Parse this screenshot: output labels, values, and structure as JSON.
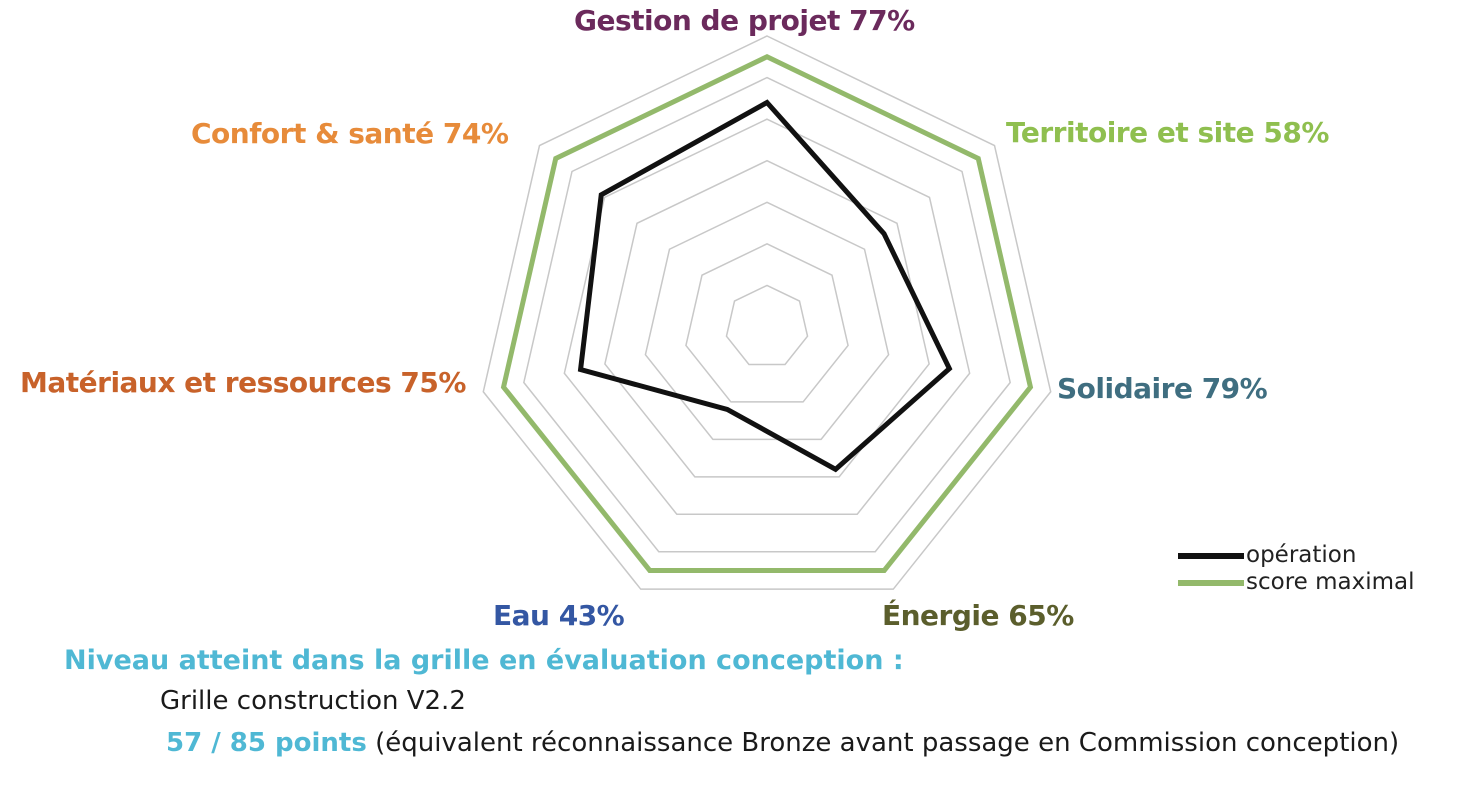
{
  "chart_data": {
    "type": "radar",
    "axes": [
      {
        "name": "Gestion de projet",
        "pct": "77%",
        "color": "#6b2a5c"
      },
      {
        "name": "Territoire et site",
        "pct": "58%",
        "color": "#8fbf4f"
      },
      {
        "name": "Solidaire",
        "pct": "79%",
        "color": "#3f6e80"
      },
      {
        "name": "Énergie",
        "pct": "65%",
        "color": "#5b5e2c"
      },
      {
        "name": "Eau",
        "pct": "43%",
        "color": "#3457a3"
      },
      {
        "name": "Matériaux et ressources",
        "pct": "75%",
        "color": "#c8622a"
      },
      {
        "name": "Confort & santé",
        "pct": "74%",
        "color": "#e78b3a"
      }
    ],
    "range": [
      0,
      7
    ],
    "grid_levels": 7,
    "series": [
      {
        "name": "opération",
        "color": "#111111",
        "values": [
          5.4,
          3.6,
          4.5,
          3.8,
          2.2,
          4.6,
          5.1
        ]
      },
      {
        "name": "score maximal",
        "color": "#93b96b",
        "values": [
          6.5,
          6.5,
          6.5,
          6.5,
          6.5,
          6.5,
          6.5
        ]
      }
    ]
  },
  "summary": {
    "title": "Niveau atteint dans la grille en évaluation conception :",
    "grid_name": "Grille construction V2.2",
    "points": "57 / 85 points",
    "note": "(équivalent réconnaissance Bronze avant passage en Commission conception)"
  }
}
